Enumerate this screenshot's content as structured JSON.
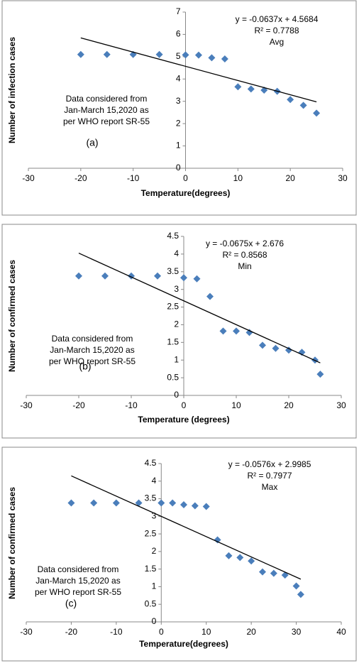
{
  "chart_data": [
    {
      "type": "scatter",
      "panel_label": "(a)",
      "x_label": "Temperature(degrees)",
      "y_label": "Number of infection cases",
      "note": [
        "Data considered from",
        "Jan-March 15,2020 as",
        "per WHO report SR-55"
      ],
      "trendline": {
        "slope": -0.0637,
        "intercept": 4.5684,
        "label": "y = -0.0637x + 4.5684",
        "r2_label": "R² = 0.7788",
        "name": "Avg"
      },
      "color": "#4a7ebb",
      "x": [
        -20,
        -15,
        -10,
        -5,
        0,
        2.5,
        5,
        7.5,
        10,
        12.5,
        15,
        17.5,
        20,
        22.5,
        25
      ],
      "values": [
        5.1,
        5.1,
        5.1,
        5.1,
        5.08,
        5.07,
        4.95,
        4.9,
        3.65,
        3.55,
        3.5,
        3.45,
        3.08,
        2.82,
        2.47
      ],
      "xlim": [
        -30,
        30
      ],
      "xticks": [
        -30,
        -20,
        -10,
        0,
        10,
        20,
        30
      ],
      "ylim": [
        0,
        7
      ],
      "yticks": [
        0,
        1,
        2,
        3,
        4,
        5,
        6,
        7
      ]
    },
    {
      "type": "scatter",
      "panel_label": "(b)",
      "x_label": "Temperature (degrees)",
      "y_label": "Number of confirmed cases",
      "note": [
        "Data considered from",
        "Jan-March 15,2020 as",
        "per WHO report SR-55"
      ],
      "trendline": {
        "slope": -0.0675,
        "intercept": 2.676,
        "label": "y = -0.0675x + 2.676",
        "r2_label": "R² = 0.8568",
        "name": "Min"
      },
      "color": "#4a7ebb",
      "x": [
        -20,
        -15,
        -10,
        -5,
        0,
        2.5,
        5,
        7.5,
        10,
        12.5,
        15,
        17.5,
        20,
        22.5,
        25,
        26
      ],
      "values": [
        3.38,
        3.38,
        3.38,
        3.38,
        3.33,
        3.3,
        2.8,
        1.82,
        1.82,
        1.78,
        1.42,
        1.33,
        1.28,
        1.22,
        1.0,
        0.6
      ],
      "xlim": [
        -30,
        30
      ],
      "xticks": [
        -30,
        -20,
        -10,
        0,
        10,
        20,
        30
      ],
      "ylim": [
        0,
        4.5
      ],
      "yticks": [
        0,
        0.5,
        1,
        1.5,
        2,
        2.5,
        3,
        3.5,
        4,
        4.5
      ]
    },
    {
      "type": "scatter",
      "panel_label": "(c)",
      "x_label": "Temperature(degrees)",
      "y_label": "Number of confirmed cases",
      "note": [
        "Data considered from",
        "Jan-March 15,2020 as",
        "per WHO report SR-55"
      ],
      "trendline": {
        "slope": -0.0576,
        "intercept": 2.9985,
        "label": "y = -0.0576x + 2.9985",
        "r2_label": "R² = 0.7977",
        "name": "Max"
      },
      "color": "#4a7ebb",
      "x": [
        -20,
        -15,
        -10,
        -5,
        0,
        2.5,
        5,
        7.5,
        10,
        12.5,
        15,
        17.5,
        20,
        22.5,
        25,
        27.5,
        30,
        31
      ],
      "values": [
        3.38,
        3.38,
        3.38,
        3.38,
        3.38,
        3.38,
        3.33,
        3.3,
        3.28,
        2.33,
        1.88,
        1.83,
        1.73,
        1.42,
        1.38,
        1.33,
        1.02,
        0.78
      ],
      "xlim": [
        -30,
        40
      ],
      "xticks": [
        -30,
        -20,
        -10,
        0,
        10,
        20,
        30,
        40
      ],
      "ylim": [
        0,
        4.5
      ],
      "yticks": [
        0,
        0.5,
        1,
        1.5,
        2,
        2.5,
        3,
        3.5,
        4,
        4.5
      ]
    }
  ]
}
